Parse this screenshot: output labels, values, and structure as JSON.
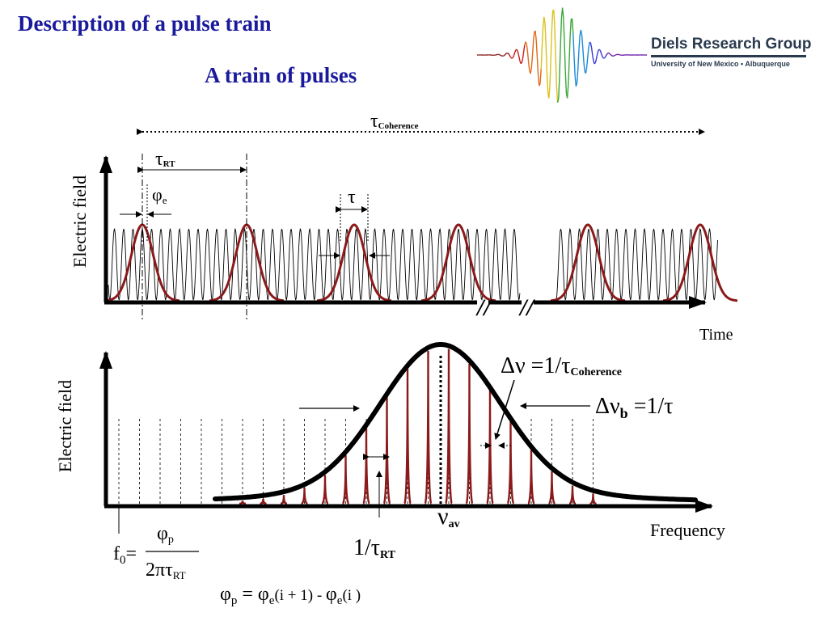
{
  "header": {
    "title": "Description of a pulse train",
    "subtitle": "A train of pulses",
    "logo_name": "Diels Research Group",
    "logo_affiliation": "University of New Mexico • Albuquerque"
  },
  "time_plot": {
    "ylabel": "Electric field",
    "xlabel": "Time",
    "tau_coherence": {
      "symbol": "τ",
      "subscript": "Coherence"
    },
    "tau_rt": {
      "symbol": "τ",
      "subscript": "RT"
    },
    "phi_e": {
      "symbol": "φ",
      "subscript": "e"
    },
    "tau": "τ",
    "break_mark": "//"
  },
  "freq_plot": {
    "ylabel": "Electric field",
    "xlabel": "Frequency",
    "delta_nu_coherence": {
      "main": "Δν =1/τ",
      "subscript": "Coherence"
    },
    "delta_nu_b": {
      "d": "Δν",
      "subscript": "b",
      "rest": " =1/τ"
    },
    "nu_av": {
      "symbol": "ν",
      "subscript": "av"
    },
    "inv_tau_rt": {
      "main": "1/τ",
      "subscript": "RT"
    },
    "f0_formula": {
      "lhs": "f",
      "lhs_sub": "0",
      "eq": "=",
      "numerator": "φ",
      "numerator_sub": "p",
      "denominator": "2πτ",
      "denominator_sub": "RT"
    },
    "phase_formula": {
      "lhs": "φ",
      "lhs_sub": "p",
      "eq": " = ",
      "a": "φ",
      "a_sub": "e",
      "a_arg": "(i + 1) - ",
      "b": "φ",
      "b_sub": "e",
      "b_arg": "(i )"
    }
  },
  "colors": {
    "title": "#1a1a9c",
    "envelope": "#8b1a1a",
    "axis": "#000000"
  }
}
